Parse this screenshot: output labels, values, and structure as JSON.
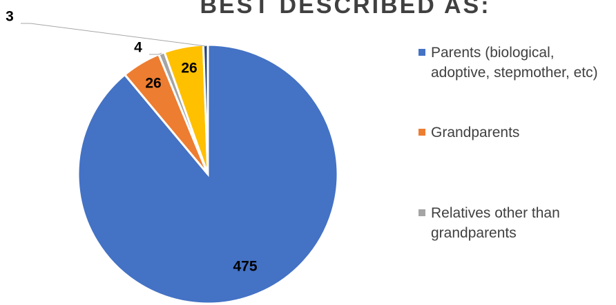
{
  "chart_data": {
    "type": "pie",
    "title": "BEST DESCRIBED AS:",
    "categories": [
      "Parents (biological, adoptive, stepmother, etc)",
      "Grandparents",
      "Relatives other than grandparents",
      null,
      null
    ],
    "values": [
      475,
      26,
      4,
      26,
      3
    ],
    "colors": [
      "#4472c4",
      "#ed7d31",
      "#a5a5a5",
      "#ffc000",
      "#264478"
    ]
  }
}
